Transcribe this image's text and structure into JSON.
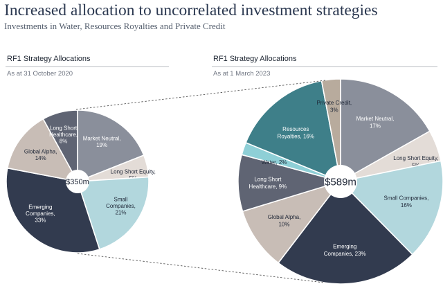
{
  "header": {
    "title": "Increased allocation to uncorrelated investment strategies",
    "subtitle": "Investments in Water, Resources Royalties and Private Credit"
  },
  "colors": {
    "market_neutral": "#8a8f9b",
    "long_short_equity": "#e3dcd7",
    "small_companies": "#b2d7dd",
    "emerging_companies": "#323b4f",
    "global_alpha": "#c8bdb6",
    "long_short_healthcare": "#5f6473",
    "water": "#8ecfd6",
    "resources_royalties": "#3e7f89",
    "private_credit": "#b8ab9d",
    "text_dark": "#1d2535",
    "text_light": "#ffffff",
    "connector": "#555555"
  },
  "chart_data": [
    {
      "type": "pie",
      "title": "RF1 Strategy Allocations",
      "subtitle": "As at 31 October 2020",
      "total_label": "$350m",
      "slices": [
        {
          "name": "Market Neutral",
          "label_lines": [
            "Market Neutral,",
            "19%"
          ],
          "value": 19,
          "color_key": "market_neutral",
          "text": "light"
        },
        {
          "name": "Long Short Equity",
          "label_lines": [
            "Long Short Equity,",
            "5%"
          ],
          "value": 5,
          "color_key": "long_short_equity",
          "text": "dark"
        },
        {
          "name": "Small Companies",
          "label_lines": [
            "Small",
            "Companies,",
            "21%"
          ],
          "value": 21,
          "color_key": "small_companies",
          "text": "dark"
        },
        {
          "name": "Emerging Companies",
          "label_lines": [
            "Emerging",
            "Companies,",
            "33%"
          ],
          "value": 33,
          "color_key": "emerging_companies",
          "text": "light"
        },
        {
          "name": "Global Alpha",
          "label_lines": [
            "Global Alpha,",
            "14%"
          ],
          "value": 14,
          "color_key": "global_alpha",
          "text": "dark"
        },
        {
          "name": "Long Short Healthcare",
          "label_lines": [
            "Long Short",
            "Healthcare,",
            "8%"
          ],
          "value": 8,
          "color_key": "long_short_healthcare",
          "text": "light"
        }
      ]
    },
    {
      "type": "pie",
      "title": "RF1 Strategy Allocations",
      "subtitle": "As at 1 March 2023",
      "total_label": "$589m",
      "slices": [
        {
          "name": "Market Neutral",
          "label_lines": [
            "Market Neutral,",
            "17%"
          ],
          "value": 17,
          "color_key": "market_neutral",
          "text": "light"
        },
        {
          "name": "Long Short Equity",
          "label_lines": [
            "Long Short Equity,",
            "5%"
          ],
          "value": 5,
          "color_key": "long_short_equity",
          "text": "dark"
        },
        {
          "name": "Small Companies",
          "label_lines": [
            "Small Companies,",
            "16%"
          ],
          "value": 16,
          "color_key": "small_companies",
          "text": "dark"
        },
        {
          "name": "Emerging Companies",
          "label_lines": [
            "Emerging",
            "Companies, 23%"
          ],
          "value": 23,
          "color_key": "emerging_companies",
          "text": "light"
        },
        {
          "name": "Global Alpha",
          "label_lines": [
            "Global Alpha,",
            "10%"
          ],
          "value": 10,
          "color_key": "global_alpha",
          "text": "dark"
        },
        {
          "name": "Long Short Healthcare",
          "label_lines": [
            "Long Short",
            "Healthcare, 9%"
          ],
          "value": 9,
          "color_key": "long_short_healthcare",
          "text": "light"
        },
        {
          "name": "Water",
          "label_lines": [
            "Water, 2%"
          ],
          "value": 2,
          "color_key": "water",
          "text": "dark"
        },
        {
          "name": "Resources Royalties",
          "label_lines": [
            "Resources",
            "Royalties, 16%"
          ],
          "value": 16,
          "color_key": "resources_royalties",
          "text": "light"
        },
        {
          "name": "Private Credit",
          "label_lines": [
            "Private Credit,",
            "3%"
          ],
          "value": 3,
          "color_key": "private_credit",
          "text": "dark"
        }
      ]
    }
  ]
}
